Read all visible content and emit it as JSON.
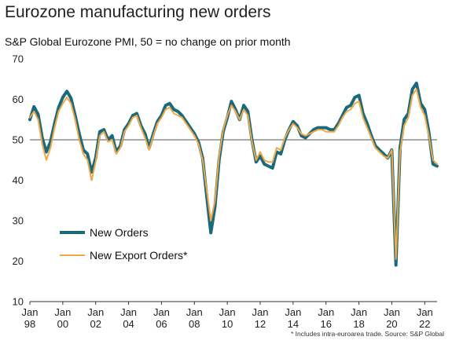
{
  "header": {
    "title": "Eurozone manufacturing new orders",
    "subtitle": "S&P Global Eurozone PMI, 50 = no change on prior month"
  },
  "footnote": "* Includes intra-euroarea trade.  Source: S&P Global",
  "colors": {
    "new_orders": "#1b6a7c",
    "new_export_orders": "#f0a848",
    "axis": "#333333",
    "reference_line": "#555555"
  },
  "chart_data": {
    "type": "line",
    "title": "Eurozone manufacturing new orders",
    "subtitle": "S&P Global Eurozone PMI, 50 = no change on prior month",
    "xlim": [
      1998.0,
      2022.75
    ],
    "ylim": [
      10,
      70
    ],
    "yticks": [
      10,
      20,
      30,
      40,
      50,
      60,
      70
    ],
    "reference_line": 50,
    "xticks": [
      {
        "x": 1998,
        "line1": "Jan",
        "line2": "98"
      },
      {
        "x": 2000,
        "line1": "Jan",
        "line2": "00"
      },
      {
        "x": 2002,
        "line1": "Jan",
        "line2": "02"
      },
      {
        "x": 2004,
        "line1": "Jan",
        "line2": "04"
      },
      {
        "x": 2006,
        "line1": "Jan",
        "line2": "06"
      },
      {
        "x": 2008,
        "line1": "Jan",
        "line2": "08"
      },
      {
        "x": 2010,
        "line1": "Jan",
        "line2": "10"
      },
      {
        "x": 2012,
        "line1": "Jan",
        "line2": "12"
      },
      {
        "x": 2014,
        "line1": "Jan",
        "line2": "14"
      },
      {
        "x": 2016,
        "line1": "Jan",
        "line2": "16"
      },
      {
        "x": 2018,
        "line1": "Jan",
        "line2": "18"
      },
      {
        "x": 2020,
        "line1": "Jan",
        "line2": "20"
      },
      {
        "x": 2022,
        "line1": "Jan",
        "line2": "22"
      }
    ],
    "legend_position": "bottom-left",
    "series": [
      {
        "name": "New Orders",
        "color": "#1b6a7c",
        "points": [
          [
            1998.0,
            55.0
          ],
          [
            1998.25,
            58.2
          ],
          [
            1998.5,
            56.3
          ],
          [
            1998.75,
            50.5
          ],
          [
            1999.0,
            47.0
          ],
          [
            1999.25,
            49.5
          ],
          [
            1999.5,
            54.0
          ],
          [
            1999.75,
            58.0
          ],
          [
            2000.0,
            60.5
          ],
          [
            2000.25,
            62.0
          ],
          [
            2000.5,
            60.3
          ],
          [
            2000.75,
            56.0
          ],
          [
            2001.0,
            51.5
          ],
          [
            2001.25,
            47.5
          ],
          [
            2001.5,
            46.5
          ],
          [
            2001.75,
            42.0
          ],
          [
            2002.0,
            45.5
          ],
          [
            2002.25,
            52.0
          ],
          [
            2002.5,
            52.5
          ],
          [
            2002.75,
            50.0
          ],
          [
            2003.0,
            51.0
          ],
          [
            2003.25,
            47.0
          ],
          [
            2003.5,
            48.5
          ],
          [
            2003.75,
            52.5
          ],
          [
            2004.0,
            54.0
          ],
          [
            2004.25,
            56.0
          ],
          [
            2004.5,
            56.5
          ],
          [
            2004.75,
            53.5
          ],
          [
            2005.0,
            51.5
          ],
          [
            2005.25,
            48.0
          ],
          [
            2005.5,
            51.5
          ],
          [
            2005.75,
            54.5
          ],
          [
            2006.0,
            56.0
          ],
          [
            2006.25,
            58.5
          ],
          [
            2006.5,
            59.0
          ],
          [
            2006.75,
            57.5
          ],
          [
            2007.0,
            57.0
          ],
          [
            2007.25,
            56.0
          ],
          [
            2007.5,
            54.5
          ],
          [
            2007.75,
            53.0
          ],
          [
            2008.0,
            51.5
          ],
          [
            2008.25,
            49.5
          ],
          [
            2008.5,
            45.5
          ],
          [
            2008.75,
            36.0
          ],
          [
            2009.0,
            27.0
          ],
          [
            2009.25,
            33.5
          ],
          [
            2009.5,
            45.0
          ],
          [
            2009.75,
            52.0
          ],
          [
            2010.0,
            55.5
          ],
          [
            2010.25,
            59.5
          ],
          [
            2010.5,
            57.5
          ],
          [
            2010.75,
            55.0
          ],
          [
            2011.0,
            58.5
          ],
          [
            2011.25,
            57.0
          ],
          [
            2011.5,
            50.0
          ],
          [
            2011.75,
            44.5
          ],
          [
            2012.0,
            46.0
          ],
          [
            2012.25,
            44.0
          ],
          [
            2012.5,
            43.5
          ],
          [
            2012.75,
            43.0
          ],
          [
            2013.0,
            47.0
          ],
          [
            2013.25,
            46.5
          ],
          [
            2013.5,
            50.0
          ],
          [
            2013.75,
            52.5
          ],
          [
            2014.0,
            54.5
          ],
          [
            2014.25,
            53.5
          ],
          [
            2014.5,
            51.0
          ],
          [
            2014.75,
            50.5
          ],
          [
            2015.0,
            51.5
          ],
          [
            2015.25,
            52.5
          ],
          [
            2015.5,
            53.0
          ],
          [
            2015.75,
            53.0
          ],
          [
            2016.0,
            53.0
          ],
          [
            2016.25,
            52.5
          ],
          [
            2016.5,
            52.5
          ],
          [
            2016.75,
            54.0
          ],
          [
            2017.0,
            56.0
          ],
          [
            2017.25,
            58.0
          ],
          [
            2017.5,
            58.5
          ],
          [
            2017.75,
            60.5
          ],
          [
            2018.0,
            61.0
          ],
          [
            2018.25,
            56.5
          ],
          [
            2018.5,
            54.0
          ],
          [
            2018.75,
            51.0
          ],
          [
            2019.0,
            48.5
          ],
          [
            2019.25,
            47.5
          ],
          [
            2019.5,
            46.5
          ],
          [
            2019.75,
            45.5
          ],
          [
            2020.0,
            47.5
          ],
          [
            2020.25,
            19.0
          ],
          [
            2020.5,
            48.0
          ],
          [
            2020.75,
            55.0
          ],
          [
            2021.0,
            56.5
          ],
          [
            2021.25,
            62.5
          ],
          [
            2021.5,
            64.0
          ],
          [
            2021.75,
            59.0
          ],
          [
            2022.0,
            57.5
          ],
          [
            2022.25,
            52.0
          ],
          [
            2022.5,
            44.0
          ],
          [
            2022.75,
            43.5
          ]
        ]
      },
      {
        "name": "New Export Orders*",
        "color": "#f0a848",
        "points": [
          [
            1998.0,
            55.5
          ],
          [
            1998.25,
            57.0
          ],
          [
            1998.5,
            55.0
          ],
          [
            1998.75,
            49.0
          ],
          [
            1999.0,
            45.0
          ],
          [
            1999.25,
            48.0
          ],
          [
            1999.5,
            53.0
          ],
          [
            1999.75,
            57.0
          ],
          [
            2000.0,
            59.0
          ],
          [
            2000.25,
            60.5
          ],
          [
            2000.5,
            59.0
          ],
          [
            2000.75,
            55.0
          ],
          [
            2001.0,
            50.0
          ],
          [
            2001.25,
            46.5
          ],
          [
            2001.5,
            45.0
          ],
          [
            2001.75,
            40.0
          ],
          [
            2002.0,
            44.5
          ],
          [
            2002.25,
            51.0
          ],
          [
            2002.5,
            52.0
          ],
          [
            2002.75,
            49.5
          ],
          [
            2003.0,
            50.0
          ],
          [
            2003.25,
            46.5
          ],
          [
            2003.5,
            48.0
          ],
          [
            2003.75,
            52.0
          ],
          [
            2004.0,
            53.5
          ],
          [
            2004.25,
            55.5
          ],
          [
            2004.5,
            56.0
          ],
          [
            2004.75,
            53.0
          ],
          [
            2005.0,
            50.5
          ],
          [
            2005.25,
            47.5
          ],
          [
            2005.5,
            51.0
          ],
          [
            2005.75,
            54.0
          ],
          [
            2006.0,
            55.5
          ],
          [
            2006.25,
            57.5
          ],
          [
            2006.5,
            58.0
          ],
          [
            2006.75,
            56.5
          ],
          [
            2007.0,
            56.0
          ],
          [
            2007.25,
            55.5
          ],
          [
            2007.5,
            54.0
          ],
          [
            2007.75,
            52.5
          ],
          [
            2008.0,
            51.0
          ],
          [
            2008.25,
            49.0
          ],
          [
            2008.5,
            45.0
          ],
          [
            2008.75,
            37.5
          ],
          [
            2009.0,
            30.0
          ],
          [
            2009.25,
            35.0
          ],
          [
            2009.5,
            46.0
          ],
          [
            2009.75,
            52.5
          ],
          [
            2010.0,
            56.0
          ],
          [
            2010.25,
            58.5
          ],
          [
            2010.5,
            57.0
          ],
          [
            2010.75,
            55.0
          ],
          [
            2011.0,
            57.5
          ],
          [
            2011.25,
            56.0
          ],
          [
            2011.5,
            49.5
          ],
          [
            2011.75,
            45.0
          ],
          [
            2012.0,
            47.0
          ],
          [
            2012.25,
            45.0
          ],
          [
            2012.5,
            44.5
          ],
          [
            2012.75,
            44.5
          ],
          [
            2013.0,
            48.0
          ],
          [
            2013.25,
            47.5
          ],
          [
            2013.5,
            50.5
          ],
          [
            2013.75,
            52.5
          ],
          [
            2014.0,
            54.0
          ],
          [
            2014.25,
            53.0
          ],
          [
            2014.5,
            51.5
          ],
          [
            2014.75,
            51.0
          ],
          [
            2015.0,
            51.5
          ],
          [
            2015.25,
            52.0
          ],
          [
            2015.5,
            52.5
          ],
          [
            2015.75,
            52.5
          ],
          [
            2016.0,
            52.0
          ],
          [
            2016.25,
            52.0
          ],
          [
            2016.5,
            52.0
          ],
          [
            2016.75,
            53.5
          ],
          [
            2017.0,
            55.5
          ],
          [
            2017.25,
            57.0
          ],
          [
            2017.5,
            57.5
          ],
          [
            2017.75,
            59.0
          ],
          [
            2018.0,
            59.5
          ],
          [
            2018.25,
            55.5
          ],
          [
            2018.5,
            53.0
          ],
          [
            2018.75,
            50.5
          ],
          [
            2019.0,
            48.0
          ],
          [
            2019.25,
            47.0
          ],
          [
            2019.5,
            46.0
          ],
          [
            2019.75,
            45.5
          ],
          [
            2020.0,
            47.5
          ],
          [
            2020.25,
            20.5
          ],
          [
            2020.5,
            47.0
          ],
          [
            2020.75,
            53.5
          ],
          [
            2021.0,
            55.5
          ],
          [
            2021.25,
            61.0
          ],
          [
            2021.5,
            62.5
          ],
          [
            2021.75,
            58.0
          ],
          [
            2022.0,
            56.0
          ],
          [
            2022.25,
            51.0
          ],
          [
            2022.5,
            45.0
          ],
          [
            2022.75,
            44.0
          ]
        ]
      }
    ]
  }
}
